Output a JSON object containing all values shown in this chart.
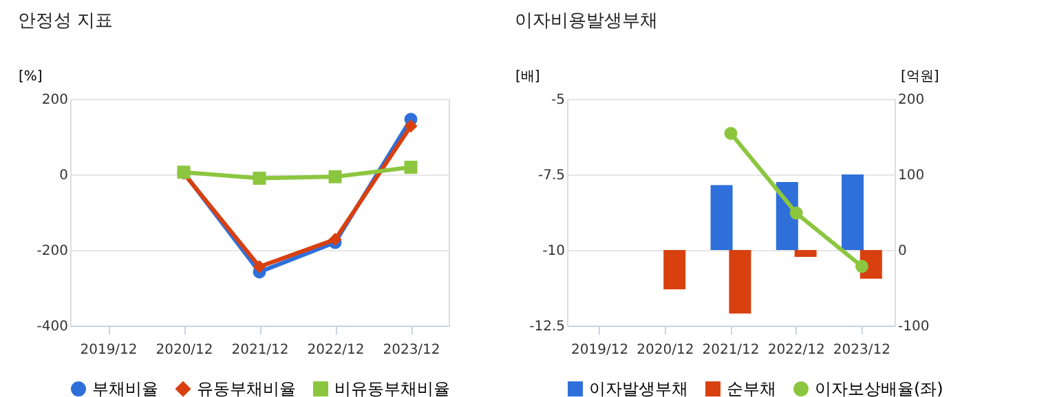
{
  "chart_data": [
    {
      "type": "line",
      "title": "안정성 지표",
      "ylabel": "[%]",
      "categories": [
        "2019/12",
        "2020/12",
        "2021/12",
        "2022/12",
        "2023/12"
      ],
      "series": [
        {
          "name": "부채비율",
          "color": "#2f6fd9",
          "marker": "circle",
          "values": [
            null,
            5,
            -258,
            -180,
            146
          ]
        },
        {
          "name": "유동부채비율",
          "color": "#d9400f",
          "marker": "diamond",
          "values": [
            null,
            3,
            -244,
            -172,
            128
          ]
        },
        {
          "name": "비유동부채비율",
          "color": "#8cc63f",
          "marker": "square",
          "values": [
            null,
            6,
            -10,
            -6,
            19
          ]
        }
      ],
      "ylim": [
        -400,
        200
      ],
      "yticks": [
        -400,
        -200,
        0,
        200
      ],
      "grid": "y",
      "legend": "bottom"
    },
    {
      "type": "bar",
      "title": "이자비용발생부채",
      "ylabel": "[배]",
      "y2label": "[억원]",
      "categories": [
        "2019/12",
        "2020/12",
        "2021/12",
        "2022/12",
        "2023/12"
      ],
      "series": [
        {
          "name": "이자발생부채",
          "color": "#2f6fd9",
          "axis": "y2",
          "values": [
            null,
            null,
            86,
            90,
            100
          ]
        },
        {
          "name": "순부채",
          "color": "#d9400f",
          "axis": "y2",
          "values": [
            null,
            -52,
            -84,
            -9,
            -38
          ]
        },
        {
          "name": "이자보상배율(좌)",
          "type": "line",
          "color": "#8cc63f",
          "marker": "circle",
          "values": [
            null,
            null,
            -6.14,
            -8.78,
            -10.54
          ]
        }
      ],
      "ylim": [
        -12.5,
        -5
      ],
      "yticks": [
        -12.5,
        -10,
        -7.5,
        -5
      ],
      "y2lim": [
        -100,
        200
      ],
      "y2ticks": [
        -100,
        0,
        100,
        200
      ],
      "grid": "y",
      "legend": "bottom"
    }
  ]
}
